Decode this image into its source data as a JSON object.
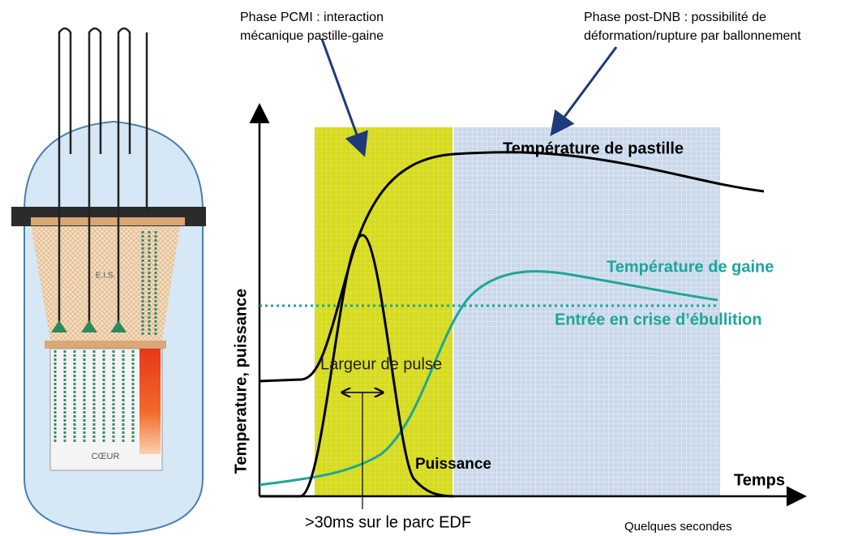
{
  "reactor": {
    "upper_label": "E.I.S.",
    "core_label": "CŒUR"
  },
  "annotations": {
    "pcmi": [
      "Phase PCMI : interaction",
      "mécanique pastille-gaine"
    ],
    "post_dnb": [
      "Phase post-DNB : possibilité de",
      "déformation/rupture par ballonnement"
    ]
  },
  "curves": {
    "pellet_temperature": "Température de pastille",
    "clad_temperature": "Température de gaine",
    "boiling_crisis": "Entrée en crise d’ébullition",
    "power": "Puissance",
    "pulse_width": "Largeur de pulse"
  },
  "axes": {
    "y_label": "Temperature, puissance",
    "x_label": "Temps"
  },
  "notes": {
    "pulse_duration": ">30ms sur le parc EDF",
    "time_scale": "Quelques secondes"
  }
}
